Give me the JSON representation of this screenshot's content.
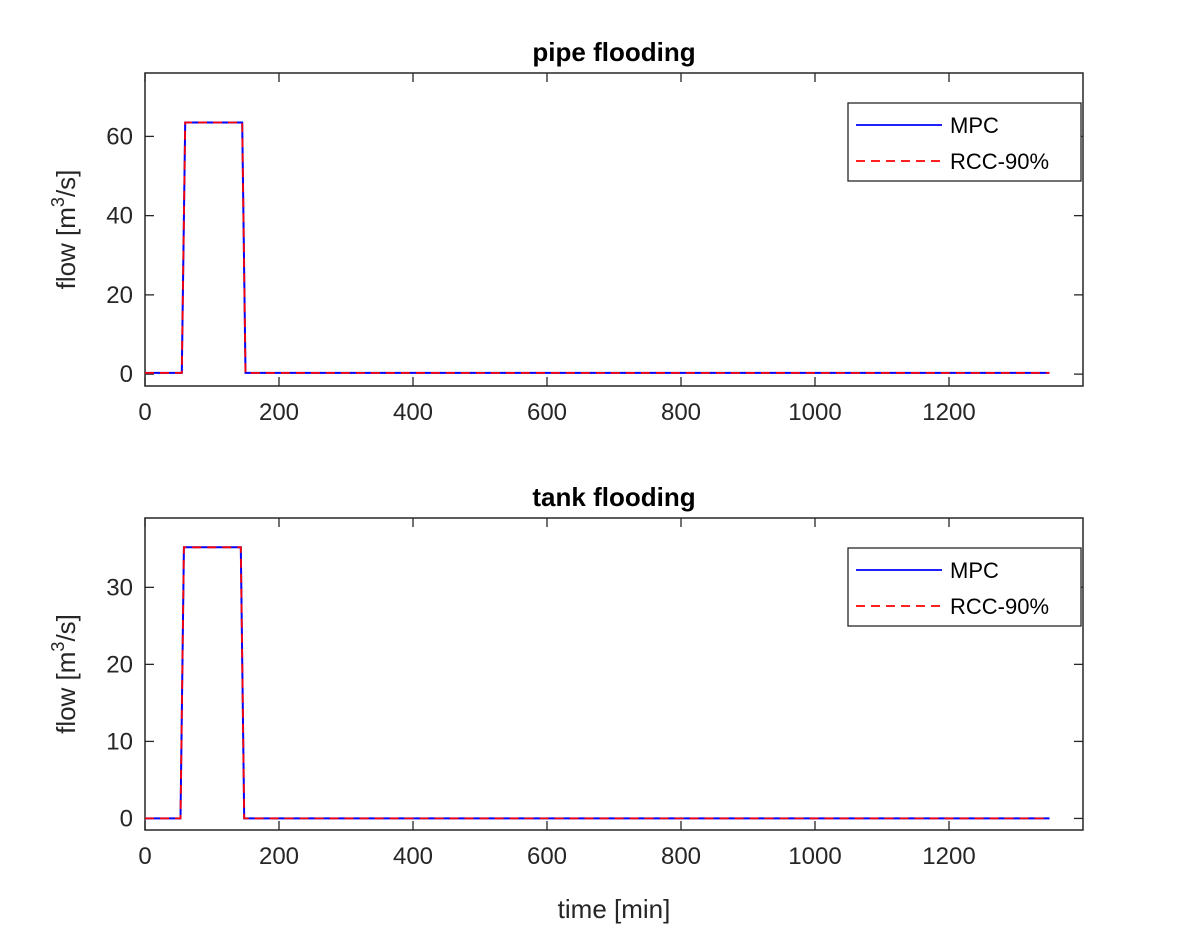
{
  "chart_data": [
    {
      "type": "line",
      "title": "pipe flooding",
      "xlabel": "",
      "ylabel": {
        "prefix": "flow [m",
        "sup": "3",
        "suffix": "/s]"
      },
      "xlim": [
        0,
        1400
      ],
      "ylim": [
        -3,
        76
      ],
      "xticks": [
        0,
        200,
        400,
        600,
        800,
        1000,
        1200
      ],
      "yticks": [
        0,
        20,
        40,
        60
      ],
      "grid": false,
      "legend_position": "top-right",
      "series": [
        {
          "name": "MPC",
          "color": "#0000ff",
          "style": "solid",
          "x": [
            0,
            55,
            60,
            145,
            150,
            1350
          ],
          "y": [
            0.3,
            0.3,
            63.5,
            63.5,
            0.3,
            0.3
          ]
        },
        {
          "name": "RCC-90%",
          "color": "#ff0000",
          "style": "dashed",
          "x": [
            0,
            55,
            60,
            145,
            150,
            1350
          ],
          "y": [
            0.3,
            0.3,
            63.5,
            63.5,
            0.3,
            0.3
          ]
        }
      ]
    },
    {
      "type": "line",
      "title": "tank flooding",
      "xlabel": "time [min]",
      "ylabel": {
        "prefix": "flow [m",
        "sup": "3",
        "suffix": "/s]"
      },
      "xlim": [
        0,
        1400
      ],
      "ylim": [
        -1.5,
        39
      ],
      "xticks": [
        0,
        200,
        400,
        600,
        800,
        1000,
        1200
      ],
      "yticks": [
        0,
        10,
        20,
        30
      ],
      "grid": false,
      "legend_position": "top-right",
      "series": [
        {
          "name": "MPC",
          "color": "#0000ff",
          "style": "solid",
          "x": [
            0,
            53,
            58,
            143,
            148,
            1350
          ],
          "y": [
            0,
            0,
            35.2,
            35.2,
            0,
            0
          ]
        },
        {
          "name": "RCC-90%",
          "color": "#ff0000",
          "style": "dashed",
          "x": [
            0,
            53,
            58,
            143,
            148,
            1350
          ],
          "y": [
            0,
            0,
            35.2,
            35.2,
            0,
            0
          ]
        }
      ]
    }
  ]
}
